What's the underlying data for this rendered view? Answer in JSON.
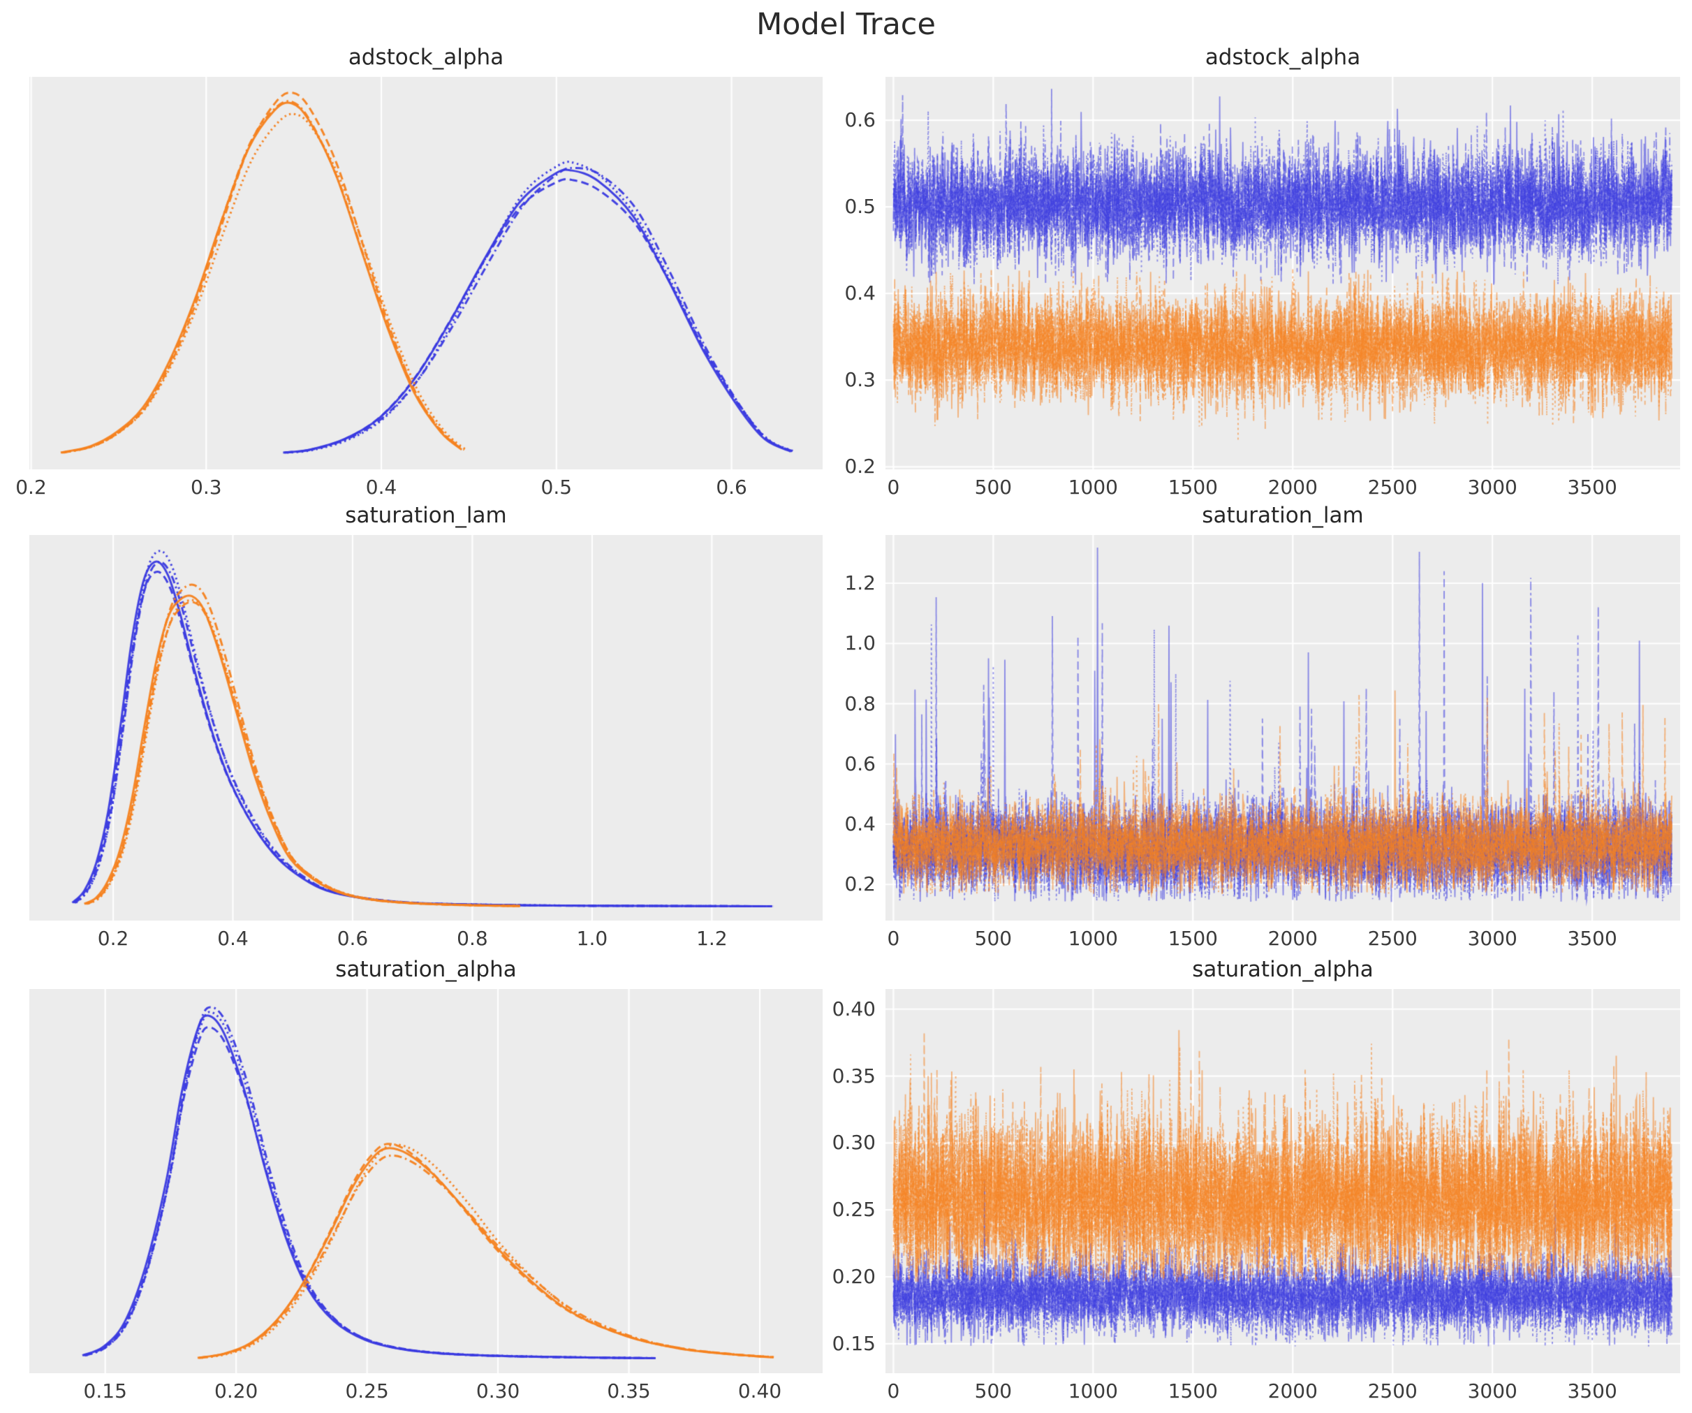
{
  "figure": {
    "title": "Model Trace",
    "background": "#ffffff",
    "panel_background": "#ececec",
    "grid_color": "#ffffff",
    "text_color": "#262626",
    "colors": {
      "chain_group_blue": "#3A3AE0",
      "chain_group_orange": "#F5821F"
    },
    "line_styles": [
      "solid",
      "dashed",
      "dashdot",
      "dotted"
    ],
    "chains_per_group": 4
  },
  "chart_data": [
    {
      "id": "adstock_alpha_kde",
      "type": "line",
      "subtype": "kde",
      "title": "adstock_alpha",
      "row": 0,
      "col": 0,
      "xlim": [
        0.199,
        0.652
      ],
      "xticks": [
        0.2,
        0.3,
        0.4,
        0.5,
        0.6
      ],
      "xtick_labels": [
        "0.2",
        "0.3",
        "0.4",
        "0.5",
        "0.6"
      ],
      "grid": "vertical",
      "series": [
        {
          "name": "blue-chains",
          "color": "#3A3AE0",
          "mode": 0.505,
          "peak": 0.81,
          "points": [
            [
              0.345,
              0.012
            ],
            [
              0.36,
              0.02
            ],
            [
              0.38,
              0.05
            ],
            [
              0.4,
              0.11
            ],
            [
              0.42,
              0.22
            ],
            [
              0.44,
              0.38
            ],
            [
              0.46,
              0.56
            ],
            [
              0.48,
              0.72
            ],
            [
              0.5,
              0.8
            ],
            [
              0.51,
              0.81
            ],
            [
              0.525,
              0.78
            ],
            [
              0.545,
              0.68
            ],
            [
              0.565,
              0.5
            ],
            [
              0.585,
              0.3
            ],
            [
              0.605,
              0.14
            ],
            [
              0.62,
              0.05
            ],
            [
              0.635,
              0.015
            ]
          ]
        },
        {
          "name": "orange-chains",
          "color": "#F5821F",
          "mode": 0.348,
          "peak": 1.0,
          "points": [
            [
              0.218,
              0.012
            ],
            [
              0.235,
              0.03
            ],
            [
              0.25,
              0.07
            ],
            [
              0.265,
              0.14
            ],
            [
              0.28,
              0.27
            ],
            [
              0.295,
              0.45
            ],
            [
              0.31,
              0.67
            ],
            [
              0.325,
              0.87
            ],
            [
              0.34,
              0.98
            ],
            [
              0.35,
              1.0
            ],
            [
              0.36,
              0.95
            ],
            [
              0.375,
              0.8
            ],
            [
              0.39,
              0.58
            ],
            [
              0.405,
              0.36
            ],
            [
              0.42,
              0.18
            ],
            [
              0.435,
              0.07
            ],
            [
              0.447,
              0.02
            ]
          ]
        }
      ]
    },
    {
      "id": "adstock_alpha_trace",
      "type": "line",
      "subtype": "trace",
      "title": "adstock_alpha",
      "row": 0,
      "col": 1,
      "xlim": [
        -40,
        3940
      ],
      "ylim": [
        0.197,
        0.65
      ],
      "n_draws": 3900,
      "xticks": [
        0,
        500,
        1000,
        1500,
        2000,
        2500,
        3000,
        3500
      ],
      "xtick_labels": [
        "0",
        "500",
        "1000",
        "1500",
        "2000",
        "2500",
        "3000",
        "3500"
      ],
      "yticks": [
        0.2,
        0.3,
        0.4,
        0.5,
        0.6
      ],
      "ytick_labels": [
        "0.2",
        "0.3",
        "0.4",
        "0.5",
        "0.6"
      ],
      "grid": "both",
      "series": [
        {
          "name": "blue-chains",
          "color": "#3A3AE0",
          "mean": 0.503,
          "sd": 0.032,
          "min": 0.41,
          "max": 0.645,
          "spike_p": 0.002,
          "spike_max": 0.64
        },
        {
          "name": "orange-chains",
          "color": "#F5821F",
          "mean": 0.338,
          "sd": 0.03,
          "min": 0.224,
          "max": 0.428,
          "spike_p": 0.0015,
          "spike_max": 0.425
        }
      ]
    },
    {
      "id": "saturation_lam_kde",
      "type": "line",
      "subtype": "kde",
      "title": "saturation_lam",
      "row": 1,
      "col": 0,
      "xlim": [
        0.06,
        1.385
      ],
      "xticks": [
        0.2,
        0.4,
        0.6,
        0.8,
        1.0,
        1.2
      ],
      "xtick_labels": [
        "0.2",
        "0.4",
        "0.6",
        "0.8",
        "1.0",
        "1.2"
      ],
      "grid": "vertical",
      "series": [
        {
          "name": "blue-chains",
          "color": "#3A3AE0",
          "mode": 0.275,
          "peak": 1.0,
          "points": [
            [
              0.135,
              0.015
            ],
            [
              0.155,
              0.05
            ],
            [
              0.175,
              0.13
            ],
            [
              0.195,
              0.28
            ],
            [
              0.215,
              0.52
            ],
            [
              0.235,
              0.78
            ],
            [
              0.255,
              0.95
            ],
            [
              0.275,
              1.0
            ],
            [
              0.295,
              0.96
            ],
            [
              0.315,
              0.85
            ],
            [
              0.34,
              0.68
            ],
            [
              0.37,
              0.5
            ],
            [
              0.4,
              0.36
            ],
            [
              0.44,
              0.23
            ],
            [
              0.48,
              0.14
            ],
            [
              0.52,
              0.085
            ],
            [
              0.56,
              0.05
            ],
            [
              0.62,
              0.028
            ],
            [
              0.7,
              0.015
            ],
            [
              0.8,
              0.01
            ],
            [
              0.95,
              0.007
            ],
            [
              1.1,
              0.006
            ],
            [
              1.3,
              0.005
            ]
          ]
        },
        {
          "name": "orange-chains",
          "color": "#F5821F",
          "mode": 0.335,
          "peak": 0.9,
          "points": [
            [
              0.155,
              0.012
            ],
            [
              0.175,
              0.03
            ],
            [
              0.195,
              0.08
            ],
            [
              0.215,
              0.17
            ],
            [
              0.235,
              0.32
            ],
            [
              0.255,
              0.52
            ],
            [
              0.275,
              0.71
            ],
            [
              0.295,
              0.84
            ],
            [
              0.315,
              0.89
            ],
            [
              0.335,
              0.9
            ],
            [
              0.355,
              0.86
            ],
            [
              0.38,
              0.74
            ],
            [
              0.41,
              0.56
            ],
            [
              0.44,
              0.38
            ],
            [
              0.47,
              0.24
            ],
            [
              0.5,
              0.14
            ],
            [
              0.54,
              0.08
            ],
            [
              0.58,
              0.045
            ],
            [
              0.63,
              0.025
            ],
            [
              0.7,
              0.014
            ],
            [
              0.8,
              0.008
            ],
            [
              0.88,
              0.006
            ]
          ]
        }
      ]
    },
    {
      "id": "saturation_lam_trace",
      "type": "line",
      "subtype": "trace",
      "title": "saturation_lam",
      "row": 1,
      "col": 1,
      "xlim": [
        -40,
        3940
      ],
      "ylim": [
        0.08,
        1.36
      ],
      "n_draws": 3900,
      "xticks": [
        0,
        500,
        1000,
        1500,
        2000,
        2500,
        3000,
        3500
      ],
      "xtick_labels": [
        "0",
        "500",
        "1000",
        "1500",
        "2000",
        "2500",
        "3000",
        "3500"
      ],
      "yticks": [
        0.2,
        0.4,
        0.6,
        0.8,
        1.0,
        1.2
      ],
      "ytick_labels": [
        "0.2",
        "0.4",
        "0.6",
        "0.8",
        "1.0",
        "1.2"
      ],
      "grid": "both",
      "series": [
        {
          "name": "blue-chains",
          "color": "#3A3AE0",
          "mean": 0.315,
          "sd": 0.075,
          "min": 0.142,
          "max": 1.33,
          "spike_p": 0.0045,
          "spike_max": 1.3
        },
        {
          "name": "orange-chains",
          "color": "#F5821F",
          "mean": 0.335,
          "sd": 0.068,
          "min": 0.168,
          "max": 0.86,
          "spike_p": 0.004,
          "spike_max": 0.85
        }
      ]
    },
    {
      "id": "saturation_alpha_kde",
      "type": "line",
      "subtype": "kde",
      "title": "saturation_alpha",
      "row": 2,
      "col": 0,
      "xlim": [
        0.121,
        0.424
      ],
      "xticks": [
        0.15,
        0.2,
        0.25,
        0.3,
        0.35,
        0.4
      ],
      "xtick_labels": [
        "0.15",
        "0.20",
        "0.25",
        "0.30",
        "0.35",
        "0.40"
      ],
      "grid": "vertical",
      "series": [
        {
          "name": "blue-chains",
          "color": "#3A3AE0",
          "mode": 0.19,
          "peak": 1.0,
          "points": [
            [
              0.142,
              0.015
            ],
            [
              0.15,
              0.04
            ],
            [
              0.158,
              0.11
            ],
            [
              0.166,
              0.27
            ],
            [
              0.174,
              0.52
            ],
            [
              0.18,
              0.78
            ],
            [
              0.186,
              0.96
            ],
            [
              0.19,
              1.0
            ],
            [
              0.196,
              0.95
            ],
            [
              0.204,
              0.78
            ],
            [
              0.212,
              0.55
            ],
            [
              0.22,
              0.35
            ],
            [
              0.228,
              0.21
            ],
            [
              0.238,
              0.115
            ],
            [
              0.25,
              0.06
            ],
            [
              0.265,
              0.032
            ],
            [
              0.285,
              0.018
            ],
            [
              0.31,
              0.012
            ],
            [
              0.335,
              0.009
            ],
            [
              0.36,
              0.007
            ]
          ]
        },
        {
          "name": "orange-chains",
          "color": "#F5821F",
          "mode": 0.258,
          "peak": 0.615,
          "points": [
            [
              0.186,
              0.008
            ],
            [
              0.196,
              0.02
            ],
            [
              0.206,
              0.05
            ],
            [
              0.216,
              0.115
            ],
            [
              0.226,
              0.22
            ],
            [
              0.236,
              0.36
            ],
            [
              0.245,
              0.5
            ],
            [
              0.252,
              0.58
            ],
            [
              0.258,
              0.615
            ],
            [
              0.266,
              0.6
            ],
            [
              0.276,
              0.54
            ],
            [
              0.288,
              0.44
            ],
            [
              0.3,
              0.33
            ],
            [
              0.315,
              0.22
            ],
            [
              0.33,
              0.135
            ],
            [
              0.35,
              0.07
            ],
            [
              0.37,
              0.035
            ],
            [
              0.39,
              0.018
            ],
            [
              0.405,
              0.01
            ]
          ]
        }
      ]
    },
    {
      "id": "saturation_alpha_trace",
      "type": "line",
      "subtype": "trace",
      "title": "saturation_alpha",
      "row": 2,
      "col": 1,
      "xlim": [
        -40,
        3940
      ],
      "ylim": [
        0.128,
        0.415
      ],
      "n_draws": 3900,
      "xticks": [
        0,
        500,
        1000,
        1500,
        2000,
        2500,
        3000,
        3500
      ],
      "xtick_labels": [
        "0",
        "500",
        "1000",
        "1500",
        "2000",
        "2500",
        "3000",
        "3500"
      ],
      "yticks": [
        0.15,
        0.2,
        0.25,
        0.3,
        0.35,
        0.4
      ],
      "ytick_labels": [
        "0.15",
        "0.20",
        "0.25",
        "0.30",
        "0.35",
        "0.40"
      ],
      "grid": "both",
      "series": [
        {
          "name": "blue-chains",
          "color": "#3A3AE0",
          "mean": 0.186,
          "sd": 0.014,
          "min": 0.148,
          "max": 0.355,
          "spike_p": 0.0004,
          "spike_max": 0.35
        },
        {
          "name": "orange-chains",
          "color": "#F5821F",
          "mean": 0.258,
          "sd": 0.031,
          "min": 0.196,
          "max": 0.388,
          "spike_p": 0.003,
          "spike_max": 0.385
        }
      ]
    }
  ]
}
